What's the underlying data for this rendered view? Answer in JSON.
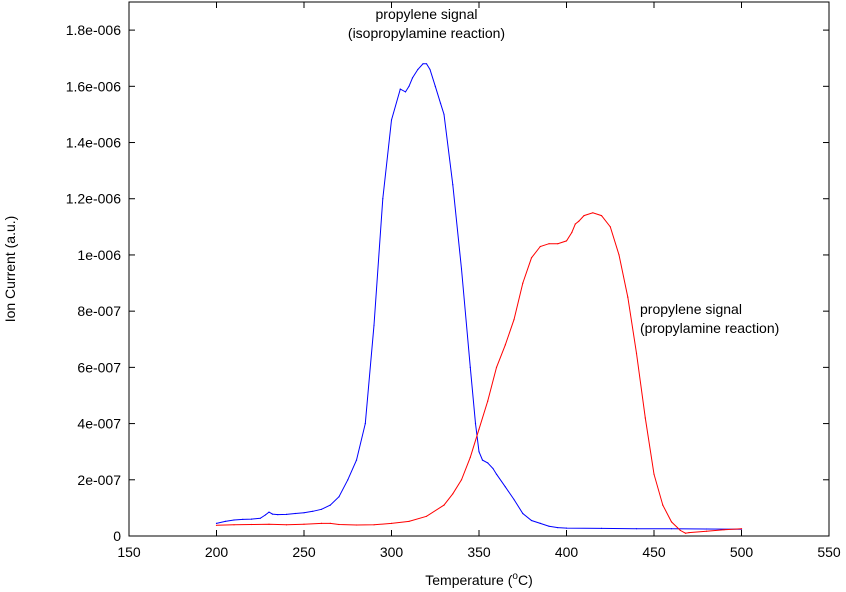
{
  "chart_data": {
    "type": "line",
    "title": "",
    "xlabel": "Temperature",
    "xlabel_unit_prefix": "(",
    "xlabel_unit_sup": "o",
    "xlabel_unit_suffix": "C)",
    "ylabel": "Ion Current (a.u.)",
    "xlim": [
      150,
      550
    ],
    "ylim": [
      0,
      1.9e-06
    ],
    "x_ticks": [
      150,
      200,
      250,
      300,
      350,
      400,
      450,
      500,
      550
    ],
    "x_tick_labels": [
      "150",
      "200",
      "250",
      "300",
      "350",
      "400",
      "450",
      "500",
      "550"
    ],
    "y_ticks": [
      0,
      2e-07,
      4e-07,
      6e-07,
      8e-07,
      1e-06,
      1.2e-06,
      1.4e-06,
      1.6e-06,
      1.8e-06
    ],
    "y_tick_labels": [
      "0",
      "2e-007",
      "4e-007",
      "6e-007",
      "8e-007",
      "1e-006",
      "1.2e-006",
      "1.4e-006",
      "1.6e-006",
      "1.8e-006"
    ],
    "grid": false,
    "legend": "none",
    "annotations": [
      {
        "lines": [
          "propylene signal",
          "(isopropylamine reaction)"
        ],
        "x": 320,
        "y": 1.84e-06,
        "anchor": "middle"
      },
      {
        "lines": [
          "propylene signal",
          "(propylamine reaction)"
        ],
        "x": 442,
        "y": 7.9e-07,
        "anchor": "start"
      }
    ],
    "series": [
      {
        "color": "#0000ff",
        "x": [
          200,
          205,
          210,
          215,
          220,
          225,
          228,
          230,
          232,
          235,
          240,
          245,
          250,
          255,
          260,
          265,
          270,
          275,
          280,
          285,
          290,
          295,
          300,
          305,
          308,
          310,
          312,
          315,
          318,
          320,
          322,
          325,
          328,
          330,
          335,
          340,
          345,
          348,
          350,
          352,
          355,
          358,
          360,
          365,
          370,
          375,
          380,
          385,
          390,
          395,
          400,
          420,
          440,
          460,
          480,
          500
        ],
        "y": [
          4.5e-08,
          5.2e-08,
          5.7e-08,
          5.9e-08,
          6e-08,
          6.3e-08,
          7.5e-08,
          8.5e-08,
          7.8e-08,
          7.6e-08,
          7.7e-08,
          8e-08,
          8.3e-08,
          8.8e-08,
          9.5e-08,
          1.1e-07,
          1.4e-07,
          2e-07,
          2.7e-07,
          4e-07,
          7.5e-07,
          1.2e-06,
          1.48e-06,
          1.59e-06,
          1.58e-06,
          1.6e-06,
          1.63e-06,
          1.66e-06,
          1.68e-06,
          1.68e-06,
          1.66e-06,
          1.6e-06,
          1.54e-06,
          1.5e-06,
          1.25e-06,
          9.5e-07,
          6e-07,
          4e-07,
          3e-07,
          2.7e-07,
          2.6e-07,
          2.4e-07,
          2.2e-07,
          1.75e-07,
          1.3e-07,
          8e-08,
          5.5e-08,
          4.5e-08,
          3.5e-08,
          3e-08,
          2.8e-08,
          2.7e-08,
          2.6e-08,
          2.6e-08,
          2.5e-08,
          2.4e-08
        ]
      },
      {
        "color": "#ff0000",
        "x": [
          200,
          210,
          220,
          230,
          240,
          250,
          260,
          265,
          270,
          280,
          290,
          300,
          310,
          320,
          330,
          335,
          340,
          345,
          350,
          355,
          360,
          365,
          370,
          375,
          380,
          385,
          390,
          395,
          400,
          403,
          405,
          407,
          410,
          415,
          420,
          425,
          430,
          435,
          440,
          445,
          450,
          455,
          460,
          465,
          468,
          470,
          480,
          490,
          500
        ],
        "y": [
          3.8e-08,
          4e-08,
          4.1e-08,
          4.2e-08,
          4e-08,
          4.2e-08,
          4.5e-08,
          4.5e-08,
          4.1e-08,
          3.9e-08,
          4e-08,
          4.5e-08,
          5.2e-08,
          7e-08,
          1.1e-07,
          1.5e-07,
          2e-07,
          2.8e-07,
          3.8e-07,
          4.8e-07,
          6e-07,
          6.8e-07,
          7.7e-07,
          9e-07,
          9.9e-07,
          1.03e-06,
          1.04e-06,
          1.04e-06,
          1.05e-06,
          1.08e-06,
          1.11e-06,
          1.12e-06,
          1.14e-06,
          1.15e-06,
          1.14e-06,
          1.1e-06,
          1e-06,
          8.5e-07,
          6.5e-07,
          4.2e-07,
          2.2e-07,
          1.1e-07,
          5e-08,
          2e-08,
          1e-08,
          1.2e-08,
          1.7e-08,
          2.2e-08,
          2.6e-08
        ]
      }
    ]
  }
}
